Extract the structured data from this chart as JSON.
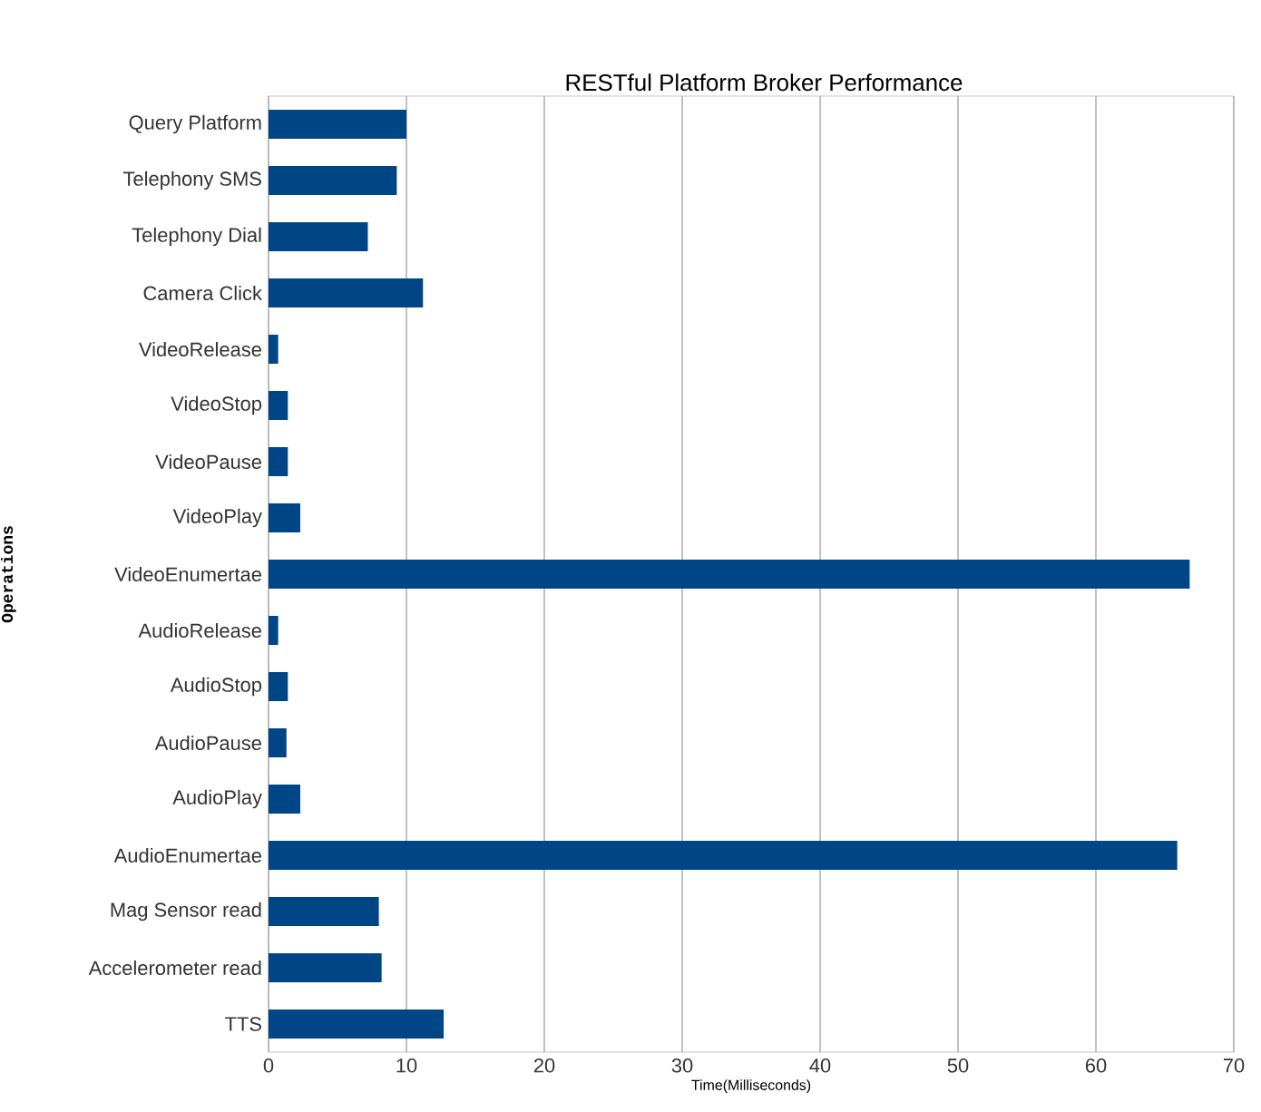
{
  "chart_data": {
    "type": "bar",
    "orientation": "horizontal",
    "title": "RESTful Platform Broker Performance",
    "xlabel": "Time(Milliseconds)",
    "ylabel": "Operations",
    "categories": [
      "Query Platform",
      "Telephony SMS",
      "Telephony Dial",
      "Camera Click",
      "VideoRelease",
      "VideoStop",
      "VideoPause",
      "VideoPlay",
      "VideoEnumertae",
      "AudioRelease",
      "AudioStop",
      "AudioPause",
      "AudioPlay",
      "AudioEnumertae",
      "Mag Sensor read",
      "Accelerometer read",
      "TTS"
    ],
    "values": [
      10.0,
      9.3,
      7.2,
      11.2,
      0.7,
      1.4,
      1.4,
      2.3,
      66.8,
      0.7,
      1.4,
      1.3,
      2.3,
      65.9,
      8.0,
      8.2,
      12.7
    ],
    "color": "#004586",
    "xlim": [
      0,
      70
    ],
    "xticks": [
      0,
      10,
      20,
      30,
      40,
      50,
      60,
      70
    ],
    "grid": "x"
  }
}
